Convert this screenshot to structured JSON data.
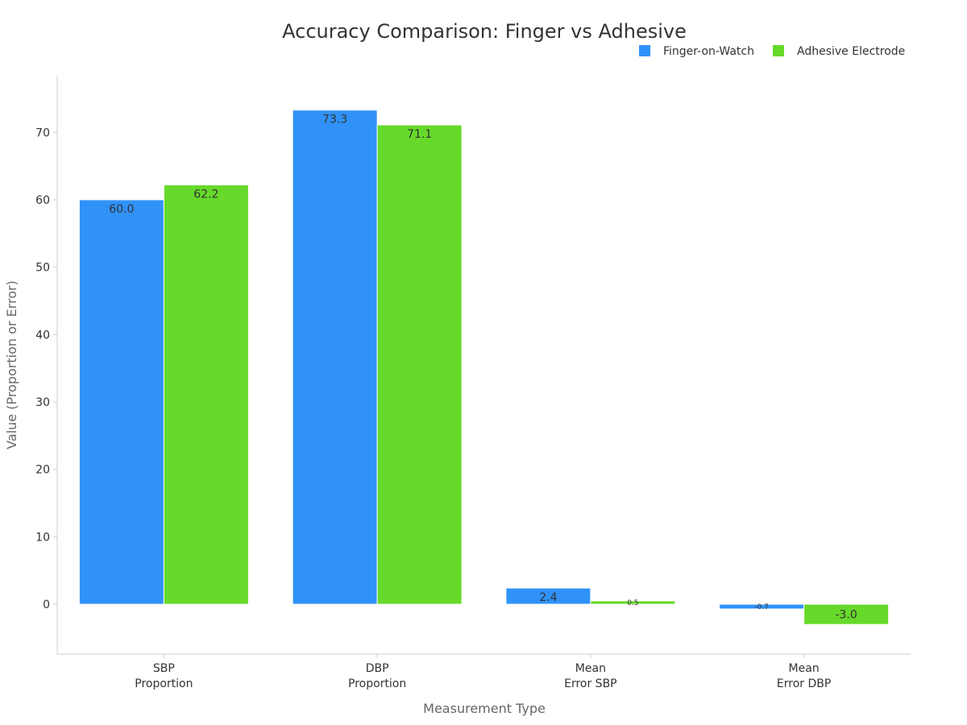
{
  "chart_data": {
    "type": "bar",
    "title": "Accuracy Comparison: Finger vs Adhesive",
    "xlabel": "Measurement Type",
    "ylabel": "Value (Proportion or Error)",
    "categories": [
      [
        "SBP",
        "Proportion"
      ],
      [
        "DBP",
        "Proportion"
      ],
      [
        "Mean",
        "Error SBP"
      ],
      [
        "Mean",
        "Error DBP"
      ]
    ],
    "series": [
      {
        "name": "Finger-on-Watch",
        "color": "#3092f8",
        "values": [
          60.0,
          73.3,
          2.4,
          -0.7
        ],
        "labels": [
          "60.0",
          "73.3",
          "2.4",
          "-0.7"
        ]
      },
      {
        "name": "Adhesive Electrode",
        "color": "#66d92a",
        "values": [
          62.2,
          71.1,
          0.5,
          -3.0
        ],
        "labels": [
          "62.2",
          "71.1",
          "0.5",
          "-3.0"
        ]
      }
    ],
    "ylim": [
      -7.4,
      78.4
    ],
    "yticks": [
      0,
      10,
      20,
      30,
      40,
      50,
      60,
      70
    ],
    "legend_position": "top-right",
    "grid": false
  }
}
